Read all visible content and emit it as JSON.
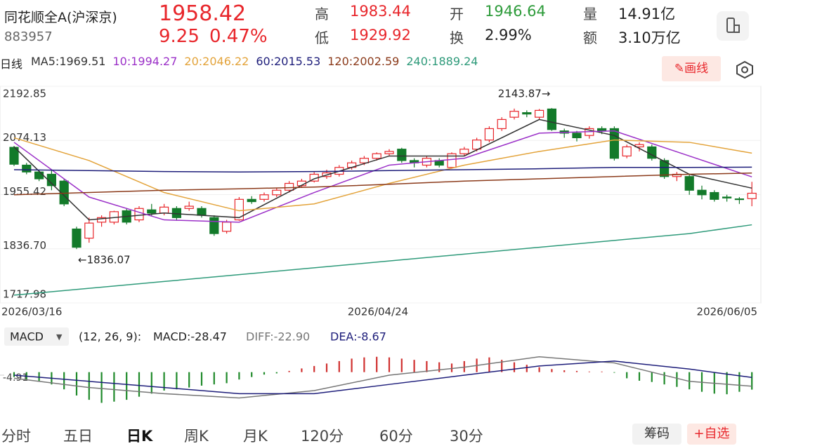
{
  "header": {
    "name": "同花顺全A(沪深京)",
    "code": "883957",
    "price": "1958.42",
    "change": "9.25",
    "change_pct": "0.47%",
    "stats": [
      {
        "label": "高",
        "value": "1983.44"
      },
      {
        "label": "低",
        "value": "1929.92"
      },
      {
        "label": "开",
        "value": "1946.64"
      },
      {
        "label": "换",
        "value": "2.99%"
      },
      {
        "label": "量",
        "value": "14.91亿"
      },
      {
        "label": "额",
        "value": "3.10万亿"
      }
    ]
  },
  "toolbar": {
    "period": "日线",
    "draw_button": "画线"
  },
  "chart_data": [
    {
      "type": "candlestick",
      "ylim": [
        1717.98,
        2192.85
      ],
      "yticks": [
        2192.85,
        2074.13,
        1955.42,
        {
          "value": 1836.7,
          "label": "1836.70"
        },
        1717.98
      ],
      "x_labels": [
        "2026/03/16",
        "2026/04/24",
        "2026/06/05"
      ],
      "annotations": {
        "high": "2143.87→",
        "low": "←1836.07"
      },
      "candles": [
        [
          2059,
          2062,
          2018,
          2022
        ],
        [
          2020,
          2025,
          2000,
          2005
        ],
        [
          2005,
          2010,
          1985,
          1990
        ],
        [
          2000,
          2008,
          1965,
          1975
        ],
        [
          1985,
          1990,
          1930,
          1935
        ],
        [
          1880,
          1885,
          1836.07,
          1840
        ],
        [
          1860,
          1905,
          1850,
          1893
        ],
        [
          1895,
          1910,
          1885,
          1905
        ],
        [
          1895,
          1920,
          1890,
          1918
        ],
        [
          1920,
          1925,
          1890,
          1895
        ],
        [
          1900,
          1930,
          1895,
          1925
        ],
        [
          1922,
          1935,
          1908,
          1915
        ],
        [
          1915,
          1935,
          1910,
          1928
        ],
        [
          1925,
          1930,
          1900,
          1905
        ],
        [
          1925,
          1940,
          1920,
          1930
        ],
        [
          1925,
          1930,
          1905,
          1910
        ],
        [
          1905,
          1910,
          1865,
          1870
        ],
        [
          1875,
          1900,
          1870,
          1895
        ],
        [
          1900,
          1950,
          1898,
          1945
        ],
        [
          1945,
          1952,
          1935,
          1940
        ],
        [
          1945,
          1960,
          1940,
          1955
        ],
        [
          1955,
          1970,
          1950,
          1965
        ],
        [
          1965,
          1985,
          1960,
          1980
        ],
        [
          1975,
          1990,
          1970,
          1985
        ],
        [
          1985,
          2005,
          1982,
          2000
        ],
        [
          1995,
          2010,
          1990,
          2003
        ],
        [
          2000,
          2020,
          1995,
          2015
        ],
        [
          2015,
          2030,
          2010,
          2025
        ],
        [
          2025,
          2040,
          2020,
          2035
        ],
        [
          2035,
          2048,
          2030,
          2045
        ],
        [
          2045,
          2055,
          2040,
          2050
        ],
        [
          2055,
          2058,
          2025,
          2030
        ],
        [
          2030,
          2035,
          2015,
          2025
        ],
        [
          2020,
          2040,
          2015,
          2035
        ],
        [
          2030,
          2035,
          2015,
          2020
        ],
        [
          2015,
          2048,
          2012,
          2045
        ],
        [
          2045,
          2060,
          2040,
          2055
        ],
        [
          2055,
          2080,
          2050,
          2075
        ],
        [
          2075,
          2105,
          2070,
          2100
        ],
        [
          2100,
          2125,
          2095,
          2120
        ],
        [
          2125,
          2143.87,
          2120,
          2138
        ],
        [
          2135,
          2140,
          2125,
          2132
        ],
        [
          2125,
          2143,
          2120,
          2140
        ],
        [
          2143,
          2145,
          2095,
          2098
        ],
        [
          2095,
          2100,
          2080,
          2090
        ],
        [
          2090,
          2095,
          2072,
          2080
        ],
        [
          2085,
          2105,
          2078,
          2100
        ],
        [
          2100,
          2105,
          2088,
          2095
        ],
        [
          2100,
          2105,
          2030,
          2035
        ],
        [
          2040,
          2065,
          2035,
          2060
        ],
        [
          2060,
          2070,
          2050,
          2065
        ],
        [
          2060,
          2065,
          2030,
          2035
        ],
        [
          2030,
          2035,
          1990,
          1995
        ],
        [
          1995,
          2005,
          1985,
          2000
        ],
        [
          1995,
          2000,
          1955,
          1965
        ],
        [
          1965,
          1975,
          1945,
          1955
        ],
        [
          1960,
          1965,
          1940,
          1945
        ],
        [
          1950,
          1955,
          1940,
          1948
        ],
        [
          1946,
          1950,
          1935,
          1945
        ],
        [
          1946.64,
          1983.44,
          1929.92,
          1958.42
        ]
      ],
      "line_x": [
        0,
        6,
        12,
        18,
        24,
        30,
        36,
        42,
        48,
        54,
        59
      ],
      "lines": [
        {
          "name": "MA5",
          "label": "MA5:1969.51",
          "color": "#333333",
          "values": [
            2060,
            1900,
            1915,
            1905,
            1990,
            2040,
            2040,
            2120,
            2085,
            2000,
            1969.51
          ]
        },
        {
          "name": "10",
          "label": "10:1994.27",
          "color": "#9b30c8",
          "values": [
            2070,
            1950,
            1900,
            1895,
            1960,
            2020,
            2035,
            2090,
            2095,
            2040,
            1994.27
          ]
        },
        {
          "name": "20",
          "label": "20:2046.22",
          "color": "#e3a33a",
          "values": [
            2080,
            2030,
            1960,
            1920,
            1935,
            1980,
            2020,
            2050,
            2075,
            2070,
            2046.22
          ]
        },
        {
          "name": "60",
          "label": "60:2015.53",
          "color": "#1d1d7a",
          "values": [
            2010,
            2008,
            2006,
            2005,
            2006,
            2008,
            2010,
            2012,
            2015,
            2015,
            2015.53
          ]
        },
        {
          "name": "120",
          "label": "120:2002.59",
          "color": "#8b3a1a",
          "values": [
            1955,
            1960,
            1965,
            1968,
            1972,
            1978,
            1985,
            1990,
            1995,
            2000,
            2002.59
          ]
        },
        {
          "name": "240",
          "label": "240:1889.24",
          "color": "#2e9a7a",
          "values": [
            1735,
            1750,
            1765,
            1780,
            1795,
            1810,
            1825,
            1840,
            1855,
            1870,
            1889.24
          ]
        }
      ]
    },
    {
      "type": "macd",
      "selector": "MACD",
      "params": "(12, 26, 9):",
      "histogram_label": "MACD:-28.47",
      "ylim": [
        -70,
        35
      ],
      "yticks": [
        -4.91
      ],
      "bars": [
        -8,
        -12,
        -15,
        -20,
        -28,
        -38,
        -45,
        -50,
        -48,
        -45,
        -40,
        -35,
        -30,
        -28,
        -25,
        -22,
        -20,
        -18,
        -12,
        -8,
        -4,
        -2,
        2,
        6,
        10,
        14,
        18,
        22,
        24,
        25,
        24,
        22,
        20,
        18,
        16,
        14,
        18,
        22,
        24,
        20,
        16,
        12,
        8,
        5,
        3,
        2,
        1,
        1,
        -1,
        -10,
        -14,
        -16,
        -20,
        -24,
        -28,
        -32,
        -35,
        -36,
        -32,
        -28.47
      ],
      "line_x": [
        0,
        6,
        12,
        18,
        24,
        30,
        36,
        42,
        48,
        54,
        59
      ],
      "lines": [
        {
          "name": "DIFF",
          "label": "DIFF:-22.90",
          "color": "#777777",
          "values": [
            -10,
            -25,
            -35,
            -42,
            -30,
            -5,
            8,
            25,
            15,
            -15,
            -22.9
          ]
        },
        {
          "name": "DEA",
          "label": "DEA:-8.67",
          "color": "#1d1d7a",
          "values": [
            -5,
            -15,
            -25,
            -35,
            -35,
            -20,
            -5,
            10,
            18,
            5,
            -8.67
          ]
        }
      ]
    }
  ],
  "tabs": [
    "分时",
    "五日",
    "日K",
    "周K",
    "月K",
    "120分",
    "60分",
    "30分"
  ],
  "actions": [
    "筹码",
    "+自选"
  ]
}
